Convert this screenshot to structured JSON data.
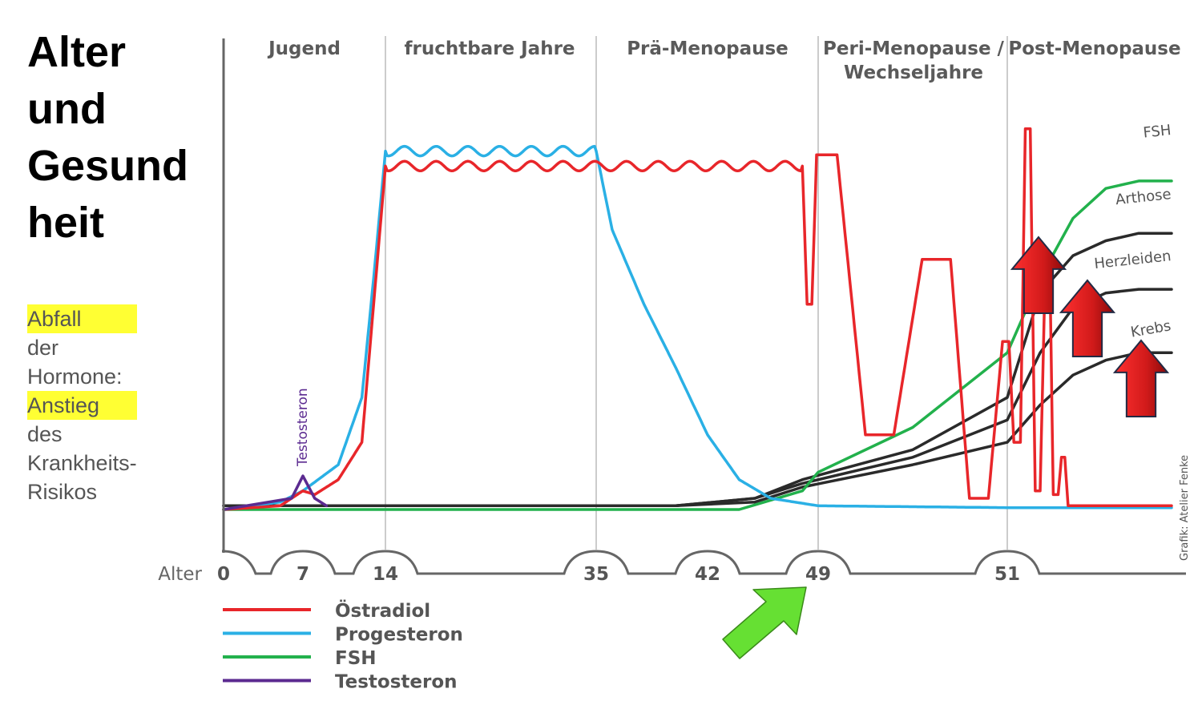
{
  "title": [
    "Alter",
    "und",
    "Gesund",
    "heit"
  ],
  "side_note": {
    "lines": [
      {
        "highlight": "Abfall",
        "text": " der"
      },
      {
        "highlight": "",
        "text": "Hormone:"
      },
      {
        "highlight": "Anstieg",
        "text": " des"
      },
      {
        "highlight": "",
        "text": "Krankheits-"
      },
      {
        "highlight": "",
        "text": "Risikos"
      }
    ]
  },
  "chart_data": {
    "type": "line",
    "title": "",
    "xlabel": "Alter",
    "ylabel": "",
    "xticks": [
      "0",
      "7",
      "14",
      "35",
      "42",
      "49",
      "51"
    ],
    "phases": [
      {
        "label": [
          "Jugend"
        ]
      },
      {
        "label": [
          "fruchtbare Jahre"
        ]
      },
      {
        "label": [
          "Prä-Menopause"
        ]
      },
      {
        "label": [
          "Peri-Menopause /",
          "Wechseljahre"
        ]
      },
      {
        "label": [
          "Post-Menopause"
        ]
      }
    ],
    "ylim": [
      0,
      100
    ],
    "series": [
      {
        "name": "Östradiol",
        "color": "#e8262a",
        "points": [
          [
            0,
            0
          ],
          [
            5,
            1
          ],
          [
            7,
            5
          ],
          [
            8,
            4
          ],
          [
            10,
            8
          ],
          [
            12,
            18
          ],
          [
            13,
            55
          ],
          [
            14,
            92
          ],
          [
            22,
            92
          ],
          [
            30,
            92
          ],
          [
            35,
            92
          ],
          [
            40,
            92
          ],
          [
            45,
            92
          ],
          [
            48,
            92
          ],
          [
            48.3,
            55
          ],
          [
            48.6,
            55
          ],
          [
            48.9,
            95
          ],
          [
            49.2,
            95
          ],
          [
            49.5,
            20
          ],
          [
            49.8,
            20
          ],
          [
            50.1,
            67
          ],
          [
            50.4,
            67
          ],
          [
            50.6,
            3
          ],
          [
            50.8,
            3
          ],
          [
            50.95,
            45
          ],
          [
            51.05,
            45
          ],
          [
            51.2,
            18
          ],
          [
            51.4,
            18
          ],
          [
            51.55,
            102
          ],
          [
            51.7,
            102
          ],
          [
            51.85,
            5
          ],
          [
            52,
            5
          ],
          [
            52.15,
            62
          ],
          [
            52.3,
            62
          ],
          [
            52.4,
            4
          ],
          [
            52.55,
            4
          ],
          [
            52.65,
            14
          ],
          [
            52.75,
            14
          ],
          [
            52.85,
            1
          ],
          [
            53,
            1
          ],
          [
            56,
            1
          ]
        ]
      },
      {
        "name": "Progesteron",
        "color": "#2ab0e5",
        "points": [
          [
            0,
            0
          ],
          [
            5,
            2
          ],
          [
            7,
            5
          ],
          [
            10,
            12
          ],
          [
            12,
            30
          ],
          [
            13,
            62
          ],
          [
            14,
            96
          ],
          [
            22,
            96
          ],
          [
            30,
            96
          ],
          [
            35,
            96
          ],
          [
            36,
            75
          ],
          [
            38,
            55
          ],
          [
            40,
            38
          ],
          [
            42,
            20
          ],
          [
            44,
            8
          ],
          [
            46,
            3
          ],
          [
            49,
            1
          ],
          [
            51,
            0.5
          ],
          [
            56,
            0.5
          ]
        ]
      },
      {
        "name": "FSH",
        "color": "#22b14c",
        "points": [
          [
            0,
            0
          ],
          [
            35,
            0
          ],
          [
            44,
            0
          ],
          [
            48,
            5
          ],
          [
            49,
            10
          ],
          [
            50,
            22
          ],
          [
            51,
            42
          ],
          [
            52,
            62
          ],
          [
            53,
            78
          ],
          [
            54,
            86
          ],
          [
            55,
            88
          ],
          [
            56,
            88
          ]
        ]
      },
      {
        "name": "Testosteron",
        "color": "#5b2a90",
        "points": [
          [
            0,
            0
          ],
          [
            6,
            3
          ],
          [
            7,
            9
          ],
          [
            8,
            3
          ],
          [
            9,
            1
          ]
        ]
      },
      {
        "name": "Arthose",
        "color": "#2a2a2a",
        "points": [
          [
            0,
            1
          ],
          [
            40,
            1
          ],
          [
            45,
            3
          ],
          [
            48,
            8
          ],
          [
            50,
            16
          ],
          [
            51,
            30
          ],
          [
            52,
            58
          ],
          [
            53,
            68
          ],
          [
            54,
            72
          ],
          [
            55,
            74
          ],
          [
            56,
            74
          ]
        ]
      },
      {
        "name": "Herzleiden",
        "color": "#2a2a2a",
        "points": [
          [
            0,
            1
          ],
          [
            40,
            1
          ],
          [
            45,
            3
          ],
          [
            48,
            7
          ],
          [
            50,
            14
          ],
          [
            51,
            24
          ],
          [
            52,
            42
          ],
          [
            53,
            54
          ],
          [
            54,
            58
          ],
          [
            55,
            59
          ],
          [
            56,
            59
          ]
        ]
      },
      {
        "name": "Krebs",
        "color": "#2a2a2a",
        "points": [
          [
            0,
            1
          ],
          [
            40,
            1
          ],
          [
            45,
            2
          ],
          [
            48,
            6
          ],
          [
            50,
            12
          ],
          [
            51,
            18
          ],
          [
            52,
            28
          ],
          [
            53,
            36
          ],
          [
            54,
            40
          ],
          [
            55,
            42
          ],
          [
            56,
            42
          ]
        ]
      }
    ],
    "end_labels": [
      "FSH",
      "Arthose",
      "Herzleiden",
      "Krebs"
    ],
    "rotated_label": "Testosteron",
    "legend": {
      "placement": "bottom-left",
      "entries": [
        "Östradiol",
        "Progesteron",
        "FSH",
        "Testosteron"
      ]
    },
    "credit": "Grafik: Atelier Fenke",
    "arrows": {
      "risk_arrows": 3,
      "risk_color": "#d11a1a",
      "pointer_arrow_color": "#66e033"
    }
  }
}
